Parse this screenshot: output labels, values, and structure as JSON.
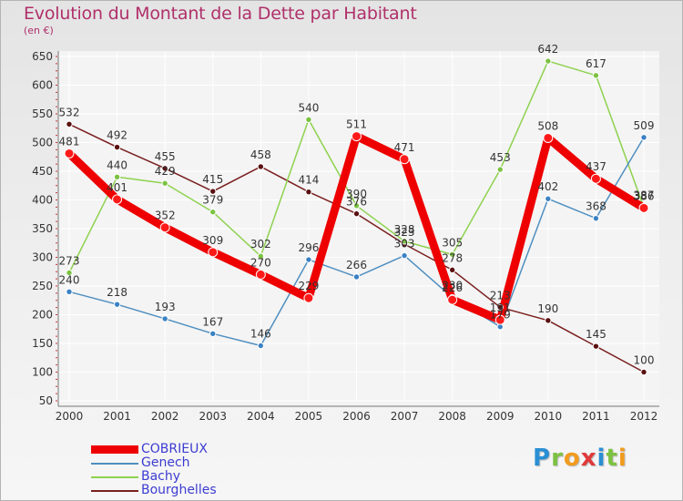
{
  "header": {
    "title": "Evolution du Montant de la Dette par Habitant",
    "subtitle": "(en €)"
  },
  "logo": {
    "letters": [
      "P",
      "r",
      "o",
      "x",
      "i",
      "t",
      "i"
    ],
    "colors": [
      "#2a8fd4",
      "#7cc242",
      "#f29b1d",
      "#e03a3a",
      "#2a8fd4",
      "#7cc242",
      "#f29b1d"
    ]
  },
  "chart_data": {
    "type": "line",
    "title": "Evolution du Montant de la Dette par Habitant",
    "ylabel": "(en €)",
    "xlabel": "",
    "ylim": [
      50,
      650
    ],
    "y_ticks": [
      50,
      100,
      150,
      200,
      250,
      300,
      350,
      400,
      450,
      500,
      550,
      600,
      650
    ],
    "categories": [
      "2000",
      "2001",
      "2002",
      "2003",
      "2004",
      "2005",
      "2006",
      "2007",
      "2008",
      "2009",
      "2010",
      "2011",
      "2012"
    ],
    "grid": true,
    "legend_position": "bottom-left",
    "series": [
      {
        "name": "Bourghelles",
        "color": "#7a1f1f",
        "marker": "#5a1010",
        "values": [
          532,
          492,
          455,
          415,
          458,
          414,
          376,
          323,
          278,
          213,
          190,
          145,
          100
        ]
      },
      {
        "name": "Bachy",
        "color": "#8ed24f",
        "marker": "#7cc242",
        "values": [
          273,
          440,
          429,
          379,
          302,
          540,
          390,
          328,
          305,
          453,
          642,
          617,
          387
        ]
      },
      {
        "name": "Genech",
        "color": "#4f8fc0",
        "marker": "#3b82c4",
        "values": [
          240,
          218,
          193,
          167,
          146,
          296,
          266,
          303,
          230,
          179,
          402,
          368,
          509
        ]
      },
      {
        "name": "COBRIEUX",
        "color": "#ee0000",
        "marker": "#ff1a1a",
        "values": [
          481,
          401,
          352,
          309,
          270,
          229,
          511,
          471,
          226,
          191,
          508,
          437,
          386
        ]
      }
    ]
  }
}
